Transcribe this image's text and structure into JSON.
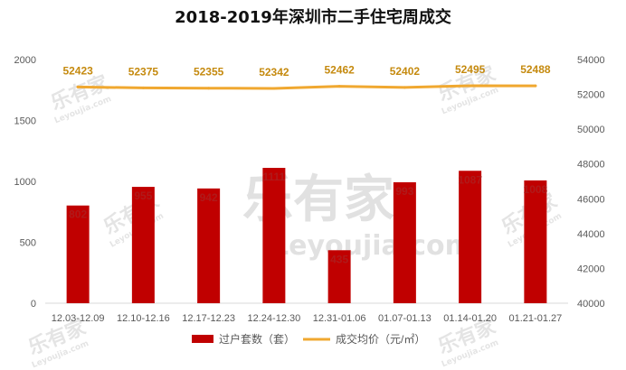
{
  "chart_data": {
    "type": "bar",
    "title": "2018-2019年深圳市二手住宅周成交",
    "categories": [
      "12.03-12.09",
      "12.10-12.16",
      "12.17-12.23",
      "12.24-12.30",
      "12.31-01.06",
      "01.07-01.13",
      "01.14-01.20",
      "01.21-01.27"
    ],
    "series": [
      {
        "name": "过户套数（套）",
        "type": "bar",
        "axis": "left",
        "color": "#c00000",
        "values": [
          802,
          955,
          942,
          1111,
          435,
          993,
          1087,
          1008
        ]
      },
      {
        "name": "成交均价（元/㎡）",
        "type": "line",
        "axis": "right",
        "color": "#f0a830",
        "values": [
          52423,
          52375,
          52355,
          52342,
          52462,
          52402,
          52495,
          52488
        ]
      }
    ],
    "y_left": {
      "ylim": [
        0,
        2000
      ],
      "ticks": [
        "0",
        "500",
        "1000",
        "1500",
        "2000"
      ]
    },
    "y_right": {
      "ylim": [
        40000,
        54000
      ],
      "ticks": [
        "40000",
        "42000",
        "44000",
        "46000",
        "48000",
        "50000",
        "52000",
        "54000"
      ]
    },
    "grid": false,
    "legend_position": "bottom"
  },
  "watermark": {
    "brand": "乐有家",
    "url": "Leyoujia.com"
  }
}
